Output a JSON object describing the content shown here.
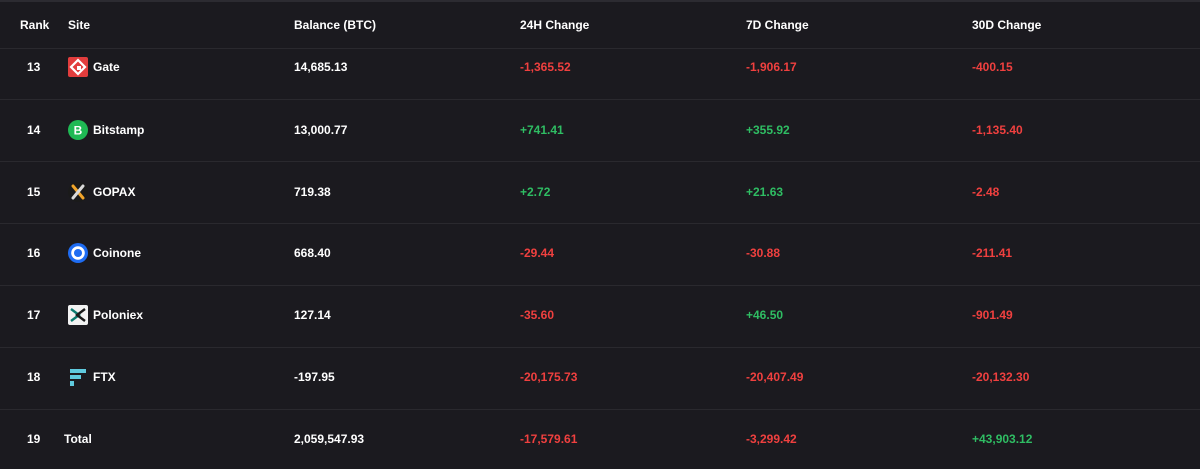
{
  "header": {
    "rank": "Rank",
    "site": "Site",
    "balance": "Balance (BTC)",
    "change_24h": "24H Change",
    "change_7d": "7D Change",
    "change_30d": "30D Change"
  },
  "rows": [
    {
      "rank": "13",
      "site": "Gate",
      "icon": "gate-icon",
      "balance": "14,685.13",
      "change_24h": "-1,365.52",
      "change_7d": "-1,906.17",
      "change_30d": "-400.15"
    },
    {
      "rank": "14",
      "site": "Bitstamp",
      "icon": "bitstamp-icon",
      "balance": "13,000.77",
      "change_24h": "+741.41",
      "change_7d": "+355.92",
      "change_30d": "-1,135.40"
    },
    {
      "rank": "15",
      "site": "GOPAX",
      "icon": "gopax-icon",
      "balance": "719.38",
      "change_24h": "+2.72",
      "change_7d": "+21.63",
      "change_30d": "-2.48"
    },
    {
      "rank": "16",
      "site": "Coinone",
      "icon": "coinone-icon",
      "balance": "668.40",
      "change_24h": "-29.44",
      "change_7d": "-30.88",
      "change_30d": "-211.41"
    },
    {
      "rank": "17",
      "site": "Poloniex",
      "icon": "poloniex-icon",
      "balance": "127.14",
      "change_24h": "-35.60",
      "change_7d": "+46.50",
      "change_30d": "-901.49"
    },
    {
      "rank": "18",
      "site": "FTX",
      "icon": "ftx-icon",
      "balance": "-197.95",
      "change_24h": "-20,175.73",
      "change_7d": "-20,407.49",
      "change_30d": "-20,132.30"
    },
    {
      "rank": "19",
      "site": "Total",
      "icon": "",
      "balance": "2,059,547.93",
      "change_24h": "-17,579.61",
      "change_7d": "-3,299.42",
      "change_30d": "+43,903.12"
    }
  ],
  "colors": {
    "background": "#1b1a1f",
    "negative": "#f0403f",
    "positive": "#2fbd63",
    "divider": "#2a292e"
  }
}
